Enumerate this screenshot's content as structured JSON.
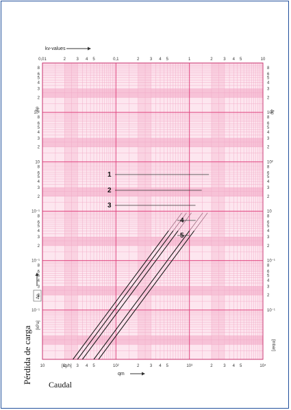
{
  "colors": {
    "border": "#1f4e9a",
    "grid_minor": "#f2a9c6",
    "grid_major": "#e0457f",
    "band": "#f7c2d7",
    "line": "#1a1a1a",
    "background": "#ffffff"
  },
  "top_axis": {
    "label": "kv-values",
    "ticks": [
      "0,01",
      "2",
      "3",
      "4",
      "5",
      "0,1",
      "2",
      "3",
      "4",
      "5",
      "1",
      "2",
      "3",
      "4",
      "5",
      "10"
    ]
  },
  "bottom_axis": {
    "label": "qm",
    "unit": "[kg/h]",
    "ticks": [
      "10",
      "2",
      "3",
      "4",
      "5",
      "10²",
      "2",
      "3",
      "4",
      "5",
      "10³",
      "2",
      "3",
      "4",
      "5",
      "10⁴"
    ]
  },
  "left_axis": {
    "label": "Δp",
    "unit": "[kPa]",
    "major_ticks": [
      "10²",
      "10",
      "10⁻¹",
      "10⁻¹",
      "10⁻¹"
    ],
    "minor_ticks": [
      "8",
      "6",
      "5",
      "4",
      "3",
      "2"
    ]
  },
  "right_axis": {
    "label": "Δp",
    "unit": "[mbar]",
    "major_ticks": [
      "10³",
      "10²",
      "10",
      "10⁻¹",
      "10⁻¹"
    ],
    "minor_ticks": [
      "8",
      "6",
      "5",
      "4",
      "3",
      "2"
    ]
  },
  "outer_labels": {
    "vertical": "Pérdida de carga",
    "bottom": "Caudal"
  },
  "chart_data": {
    "type": "line",
    "x_scale": "log",
    "y_scale": "log",
    "xlim": [
      10,
      10000
    ],
    "ylim": [
      0.001,
      1000
    ],
    "grid": true,
    "series": [
      {
        "name": "1",
        "x": [
          26,
          520
        ],
        "y": [
          0.001,
          0.4
        ]
      },
      {
        "name": "2",
        "x": [
          30,
          600
        ],
        "y": [
          0.001,
          0.4
        ]
      },
      {
        "name": "3",
        "x": [
          35,
          700
        ],
        "y": [
          0.001,
          0.4
        ]
      },
      {
        "name": "4",
        "x": [
          50,
          1000
        ],
        "y": [
          0.001,
          0.4
        ]
      },
      {
        "name": "5",
        "x": [
          58,
          1160
        ],
        "y": [
          0.001,
          0.4
        ]
      }
    ]
  }
}
